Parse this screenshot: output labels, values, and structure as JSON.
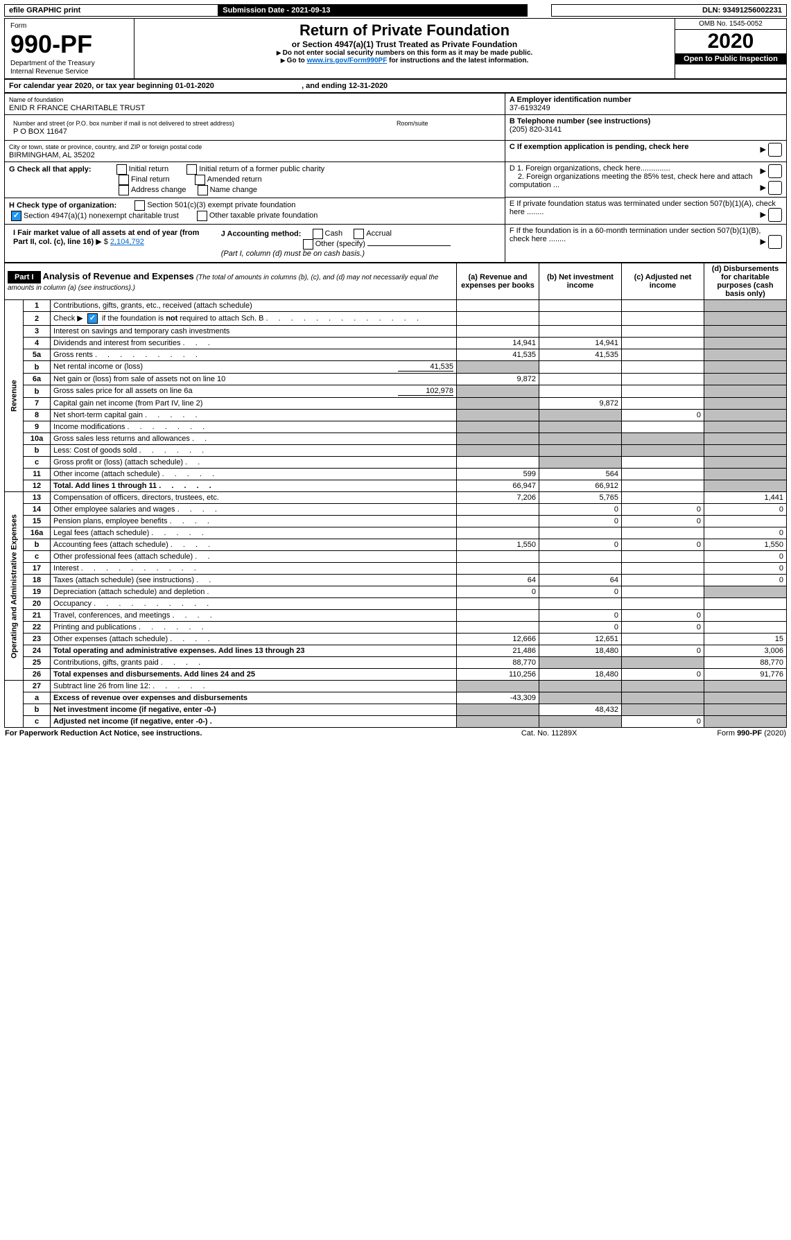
{
  "topbar": {
    "efile": "efile GRAPHIC print",
    "submission": "Submission Date - 2021-09-13",
    "dln": "DLN: 93491256002231"
  },
  "header": {
    "form_label": "Form",
    "form_num": "990-PF",
    "dept": "Department of the Treasury",
    "irs": "Internal Revenue Service",
    "title": "Return of Private Foundation",
    "subtitle": "or Section 4947(a)(1) Trust Treated as Private Foundation",
    "note1": "Do not enter social security numbers on this form as it may be made public.",
    "note2_pre": "Go to ",
    "note2_link": "www.irs.gov/Form990PF",
    "note2_post": " for instructions and the latest information.",
    "omb": "OMB No. 1545-0052",
    "year": "2020",
    "open": "Open to Public Inspection"
  },
  "cal": {
    "text_a": "For calendar year 2020, or tax year beginning ",
    "begin": "01-01-2020",
    "text_b": ", and ending ",
    "end": "12-31-2020"
  },
  "entity": {
    "name_label": "Name of foundation",
    "name": "ENID R FRANCE CHARITABLE TRUST",
    "addr_label": "Number and street (or P.O. box number if mail is not delivered to street address)",
    "addr": "P O BOX 11647",
    "room_label": "Room/suite",
    "city_label": "City or town, state or province, country, and ZIP or foreign postal code",
    "city": "BIRMINGHAM, AL  35202",
    "ein_label": "A Employer identification number",
    "ein": "37-6193249",
    "tel_label": "B Telephone number (see instructions)",
    "tel": "(205) 820-3141",
    "c_label": "C If exemption application is pending, check here",
    "d1": "D 1. Foreign organizations, check here..............",
    "d2": "2. Foreign organizations meeting the 85% test, check here and attach computation ...",
    "e": "E If private foundation status was terminated under section 507(b)(1)(A), check here ........",
    "f": "F If the foundation is in a 60-month termination under section 507(b)(1)(B), check here ........"
  },
  "g": {
    "label": "G Check all that apply:",
    "opts": [
      "Initial return",
      "Initial return of a former public charity",
      "Final return",
      "Amended return",
      "Address change",
      "Name change"
    ]
  },
  "h": {
    "label": "H Check type of organization:",
    "opt1": "Section 501(c)(3) exempt private foundation",
    "opt2": "Section 4947(a)(1) nonexempt charitable trust",
    "opt3": "Other taxable private foundation"
  },
  "i": {
    "label": "I Fair market value of all assets at end of year (from Part II, col. (c), line 16)",
    "value": "2,104,792"
  },
  "j": {
    "label": "J Accounting method:",
    "opts": [
      "Cash",
      "Accrual",
      "Other (specify)"
    ],
    "note": "(Part I, column (d) must be on cash basis.)"
  },
  "part1": {
    "label": "Part I",
    "title": "Analysis of Revenue and Expenses",
    "title_note": "(The total of amounts in columns (b), (c), and (d) may not necessarily equal the amounts in column (a) (see instructions).)",
    "cols": {
      "a": "(a) Revenue and expenses per books",
      "b": "(b) Net investment income",
      "c": "(c) Adjusted net income",
      "d": "(d) Disbursements for charitable purposes (cash basis only)"
    }
  },
  "sections": {
    "revenue": "Revenue",
    "expenses": "Operating and Administrative Expenses"
  },
  "rows": [
    {
      "n": "1",
      "d": "Contributions, gifts, grants, etc., received (attach schedule)"
    },
    {
      "n": "2",
      "d": "Check ▶ ☑ if the foundation is not required to attach Sch. B",
      "dots": true,
      "checkmark": true
    },
    {
      "n": "3",
      "d": "Interest on savings and temporary cash investments"
    },
    {
      "n": "4",
      "d": "Dividends and interest from securities",
      "a": "14,941",
      "b": "14,941"
    },
    {
      "n": "5a",
      "d": "Gross rents",
      "a": "41,535",
      "b": "41,535"
    },
    {
      "n": "b",
      "d": "Net rental income or (loss)",
      "inline": "41,535",
      "greyA": true
    },
    {
      "n": "6a",
      "d": "Net gain or (loss) from sale of assets not on line 10",
      "a": "9,872"
    },
    {
      "n": "b",
      "d": "Gross sales price for all assets on line 6a",
      "inline": "102,978",
      "greyA": true
    },
    {
      "n": "7",
      "d": "Capital gain net income (from Part IV, line 2)",
      "b": "9,872",
      "greyA": true
    },
    {
      "n": "8",
      "d": "Net short-term capital gain",
      "c": "0",
      "greyA": true,
      "greyB": true
    },
    {
      "n": "9",
      "d": "Income modifications",
      "greyA": true,
      "greyB": true
    },
    {
      "n": "10a",
      "d": "Gross sales less returns and allowances",
      "greyA": true,
      "greyB": true,
      "greyC": true
    },
    {
      "n": "b",
      "d": "Less: Cost of goods sold",
      "greyA": true,
      "greyB": true,
      "greyC": true
    },
    {
      "n": "c",
      "d": "Gross profit or (loss) (attach schedule)",
      "greyB": true
    },
    {
      "n": "11",
      "d": "Other income (attach schedule)",
      "a": "599",
      "b": "564"
    },
    {
      "n": "12",
      "d": "Total. Add lines 1 through 11",
      "a": "66,947",
      "b": "66,912",
      "bold": true
    }
  ],
  "exp_rows": [
    {
      "n": "13",
      "d": "Compensation of officers, directors, trustees, etc.",
      "a": "7,206",
      "b": "5,765",
      "dd": "1,441"
    },
    {
      "n": "14",
      "d": "Other employee salaries and wages",
      "b": "0",
      "c": "0",
      "dd": "0"
    },
    {
      "n": "15",
      "d": "Pension plans, employee benefits",
      "b": "0",
      "c": "0"
    },
    {
      "n": "16a",
      "d": "Legal fees (attach schedule)",
      "dd": "0"
    },
    {
      "n": "b",
      "d": "Accounting fees (attach schedule)",
      "a": "1,550",
      "b": "0",
      "c": "0",
      "dd": "1,550"
    },
    {
      "n": "c",
      "d": "Other professional fees (attach schedule)",
      "dd": "0"
    },
    {
      "n": "17",
      "d": "Interest",
      "dd": "0"
    },
    {
      "n": "18",
      "d": "Taxes (attach schedule) (see instructions)",
      "a": "64",
      "b": "64",
      "dd": "0"
    },
    {
      "n": "19",
      "d": "Depreciation (attach schedule) and depletion",
      "a": "0",
      "b": "0",
      "greyD": true
    },
    {
      "n": "20",
      "d": "Occupancy"
    },
    {
      "n": "21",
      "d": "Travel, conferences, and meetings",
      "b": "0",
      "c": "0"
    },
    {
      "n": "22",
      "d": "Printing and publications",
      "b": "0",
      "c": "0"
    },
    {
      "n": "23",
      "d": "Other expenses (attach schedule)",
      "a": "12,666",
      "b": "12,651",
      "dd": "15"
    },
    {
      "n": "24",
      "d": "Total operating and administrative expenses. Add lines 13 through 23",
      "a": "21,486",
      "b": "18,480",
      "c": "0",
      "dd": "3,006",
      "bold": true
    },
    {
      "n": "25",
      "d": "Contributions, gifts, grants paid",
      "a": "88,770",
      "dd": "88,770",
      "greyB": true,
      "greyC": true
    },
    {
      "n": "26",
      "d": "Total expenses and disbursements. Add lines 24 and 25",
      "a": "110,256",
      "b": "18,480",
      "c": "0",
      "dd": "91,776",
      "bold": true
    }
  ],
  "bottom_rows": [
    {
      "n": "27",
      "d": "Subtract line 26 from line 12:",
      "greyA": true,
      "greyB": true,
      "greyC": true,
      "greyD": true
    },
    {
      "n": "a",
      "d": "Excess of revenue over expenses and disbursements",
      "a": "-43,309",
      "bold": true,
      "greyB": true,
      "greyC": true,
      "greyD": true
    },
    {
      "n": "b",
      "d": "Net investment income (if negative, enter -0-)",
      "b": "48,432",
      "bold": true,
      "greyA": true,
      "greyC": true,
      "greyD": true
    },
    {
      "n": "c",
      "d": "Adjusted net income (if negative, enter -0-)",
      "c": "0",
      "bold": true,
      "greyA": true,
      "greyB": true,
      "greyD": true
    }
  ],
  "footer": {
    "left": "For Paperwork Reduction Act Notice, see instructions.",
    "mid": "Cat. No. 11289X",
    "right": "Form 990-PF (2020)"
  }
}
